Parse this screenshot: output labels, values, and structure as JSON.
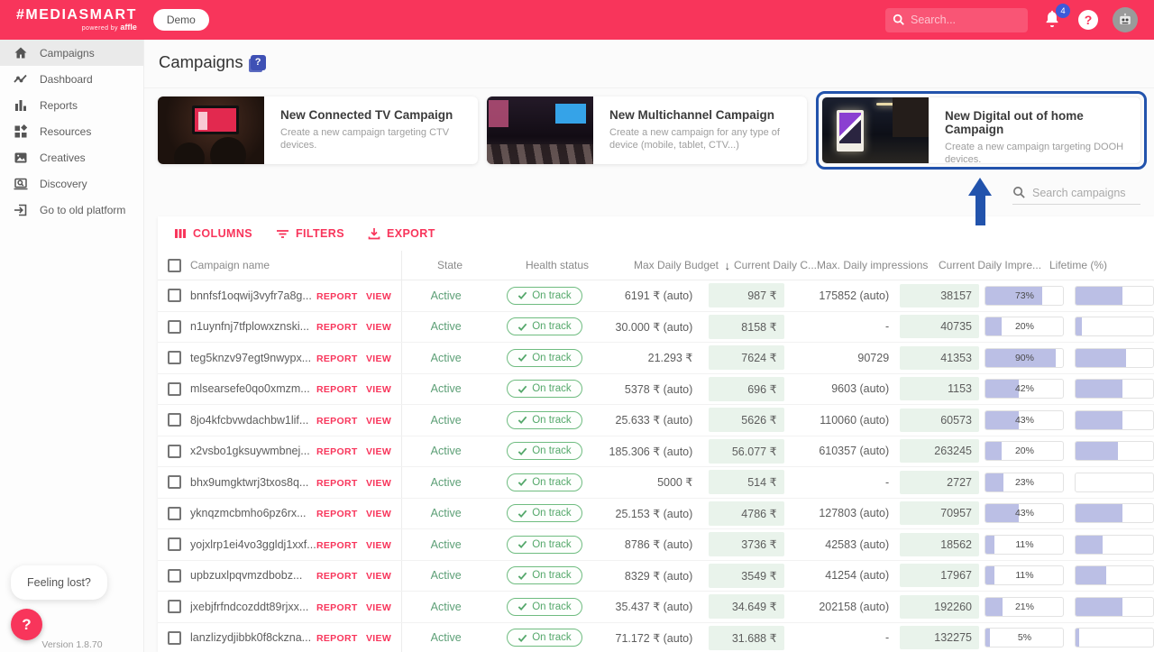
{
  "header": {
    "logo_title": "#MEDIASMART",
    "logo_powered": "powered by",
    "logo_brand": "affle",
    "env_badge": "Demo",
    "search_placeholder": "Search...",
    "notification_count": "4",
    "help_label": "?"
  },
  "sidebar": {
    "items": [
      {
        "label": "Campaigns"
      },
      {
        "label": "Dashboard"
      },
      {
        "label": "Reports"
      },
      {
        "label": "Resources"
      },
      {
        "label": "Creatives"
      },
      {
        "label": "Discovery"
      },
      {
        "label": "Go to old platform"
      }
    ],
    "feeling_lost": "Feeling lost?",
    "help_fab": "?",
    "version": "Version 1.8.70"
  },
  "page": {
    "title": "Campaigns",
    "title_help": "?"
  },
  "cards": [
    {
      "title": "New Connected TV Campaign",
      "description": "Create a new campaign targeting CTV devices."
    },
    {
      "title": "New Multichannel Campaign",
      "description": "Create a new campaign for any type of device (mobile, tablet, CTV...)"
    },
    {
      "title": "New Digital out of home Campaign",
      "description": "Create a new campaign targeting DOOH devices."
    }
  ],
  "table": {
    "search_placeholder": "Search campaigns",
    "toolbar": {
      "columns": "COLUMNS",
      "filters": "FILTERS",
      "export": "EXPORT"
    },
    "headers": {
      "name": "Campaign name",
      "state": "State",
      "health": "Health status",
      "budget": "Max Daily Budget",
      "current_cost": "Current Daily C...",
      "max_impressions": "Max. Daily impressions",
      "current_impressions": "Current Daily Impre...",
      "lifetime": "Lifetime (%)"
    },
    "report_label": "REPORT",
    "view_label": "VIEW",
    "state_label": "Active",
    "health_label": "On track",
    "rows": [
      {
        "name": "bnnfsf1oqwij3vyfr7a8g...",
        "budget": "6191 ₹ (auto)",
        "cost": "987 ₹",
        "max_imp": "175852 (auto)",
        "cur_imp": "38157",
        "lifetime_pct": 73,
        "extra_pct": 60
      },
      {
        "name": "n1uynfnj7tfplowxznski...",
        "budget": "30.000 ₹ (auto)",
        "cost": "8158 ₹",
        "max_imp": "-",
        "cur_imp": "40735",
        "lifetime_pct": 20,
        "extra_pct": 8
      },
      {
        "name": "teg5knzv97egt9nwypx...",
        "budget": "21.293 ₹",
        "cost": "7624 ₹",
        "max_imp": "90729",
        "cur_imp": "41353",
        "lifetime_pct": 90,
        "extra_pct": 65
      },
      {
        "name": "mlsearsefe0qo0xmzm...",
        "budget": "5378 ₹ (auto)",
        "cost": "696 ₹",
        "max_imp": "9603 (auto)",
        "cur_imp": "1153",
        "lifetime_pct": 42,
        "extra_pct": 60
      },
      {
        "name": "8jo4kfcbvwdachbw1lif...",
        "budget": "25.633 ₹ (auto)",
        "cost": "5626 ₹",
        "max_imp": "110060 (auto)",
        "cur_imp": "60573",
        "lifetime_pct": 43,
        "extra_pct": 60
      },
      {
        "name": "x2vsbo1gksuywmbnej...",
        "budget": "185.306 ₹ (auto)",
        "cost": "56.077 ₹",
        "max_imp": "610357 (auto)",
        "cur_imp": "263245",
        "lifetime_pct": 20,
        "extra_pct": 55
      },
      {
        "name": "bhx9umgktwrj3txos8q...",
        "budget": "5000 ₹",
        "cost": "514 ₹",
        "max_imp": "-",
        "cur_imp": "2727",
        "lifetime_pct": 23,
        "extra_pct": 0
      },
      {
        "name": "yknqzmcbmho6pz6rx...",
        "budget": "25.153 ₹ (auto)",
        "cost": "4786 ₹",
        "max_imp": "127803 (auto)",
        "cur_imp": "70957",
        "lifetime_pct": 43,
        "extra_pct": 60
      },
      {
        "name": "yojxlrp1ei4vo3ggldj1xxf...",
        "budget": "8786 ₹ (auto)",
        "cost": "3736 ₹",
        "max_imp": "42583 (auto)",
        "cur_imp": "18562",
        "lifetime_pct": 11,
        "extra_pct": 35
      },
      {
        "name": "upbzuxlpqvmzdbobz...",
        "budget": "8329 ₹ (auto)",
        "cost": "3549 ₹",
        "max_imp": "41254 (auto)",
        "cur_imp": "17967",
        "lifetime_pct": 11,
        "extra_pct": 40
      },
      {
        "name": "jxebjfrfndcozddt89rjxx...",
        "budget": "35.437 ₹ (auto)",
        "cost": "34.649 ₹",
        "max_imp": "202158 (auto)",
        "cur_imp": "192260",
        "lifetime_pct": 21,
        "extra_pct": 60
      },
      {
        "name": "lanzlizydjibbk0f8ckzna...",
        "budget": "71.172 ₹ (auto)",
        "cost": "31.688 ₹",
        "max_imp": "-",
        "cur_imp": "132275",
        "lifetime_pct": 5,
        "extra_pct": 5
      }
    ]
  },
  "colors": {
    "brand": "#F8355B",
    "highlight_blue": "#2253AC",
    "badge_blue": "#3D5AD9",
    "green_text": "#5C9F76",
    "green_cell": "#E9F3EB",
    "progress_fill": "#BBBFE5"
  }
}
